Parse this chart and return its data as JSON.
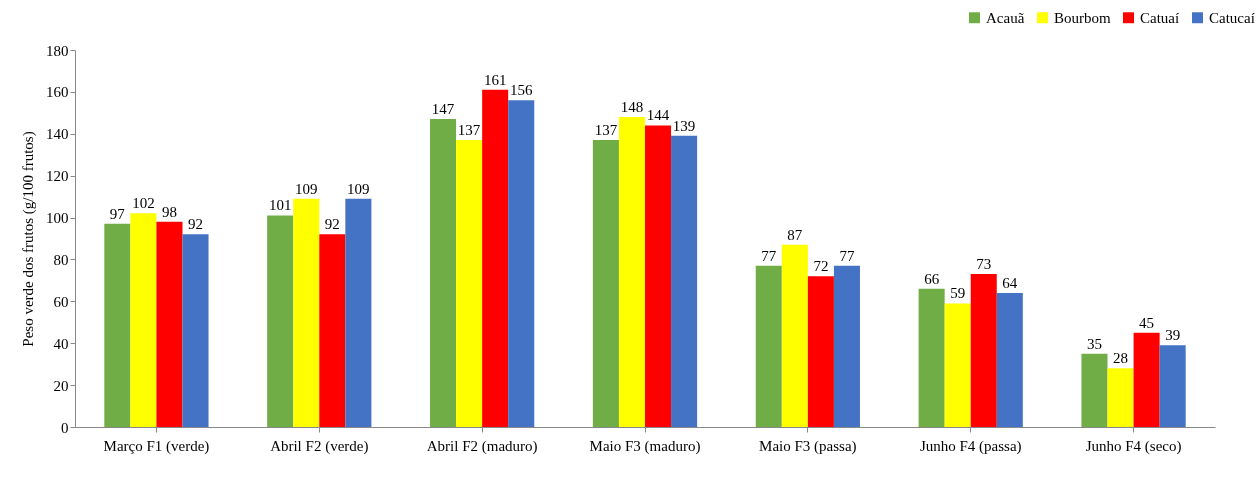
{
  "chart_data": {
    "type": "bar",
    "ylabel": "Peso verde dos frutos (g/100 frutos)",
    "categories": [
      "Março F1 (verde)",
      "Abril F2 (verde)",
      "Abril F2 (maduro)",
      "Maio F3 (maduro)",
      "Maio F3 (passa)",
      "Junho F4 (passa)",
      "Junho F4 (seco)"
    ],
    "series": [
      {
        "name": "Acauã",
        "color": "#70ad47",
        "values": [
          97,
          101,
          147,
          137,
          77,
          66,
          35
        ]
      },
      {
        "name": "Bourbom",
        "color": "#ffff00",
        "values": [
          102,
          109,
          137,
          148,
          87,
          59,
          28
        ]
      },
      {
        "name": "Catuaí",
        "color": "#ff0000",
        "values": [
          98,
          92,
          161,
          144,
          72,
          73,
          45
        ]
      },
      {
        "name": "Catucaí",
        "color": "#4472c4",
        "values": [
          92,
          109,
          156,
          139,
          77,
          64,
          39
        ]
      }
    ],
    "ylim": [
      0,
      180
    ],
    "yticks": [
      0,
      20,
      40,
      60,
      80,
      100,
      120,
      140,
      160,
      180
    ],
    "grid": false,
    "legend": "top right",
    "data_labels": true
  }
}
